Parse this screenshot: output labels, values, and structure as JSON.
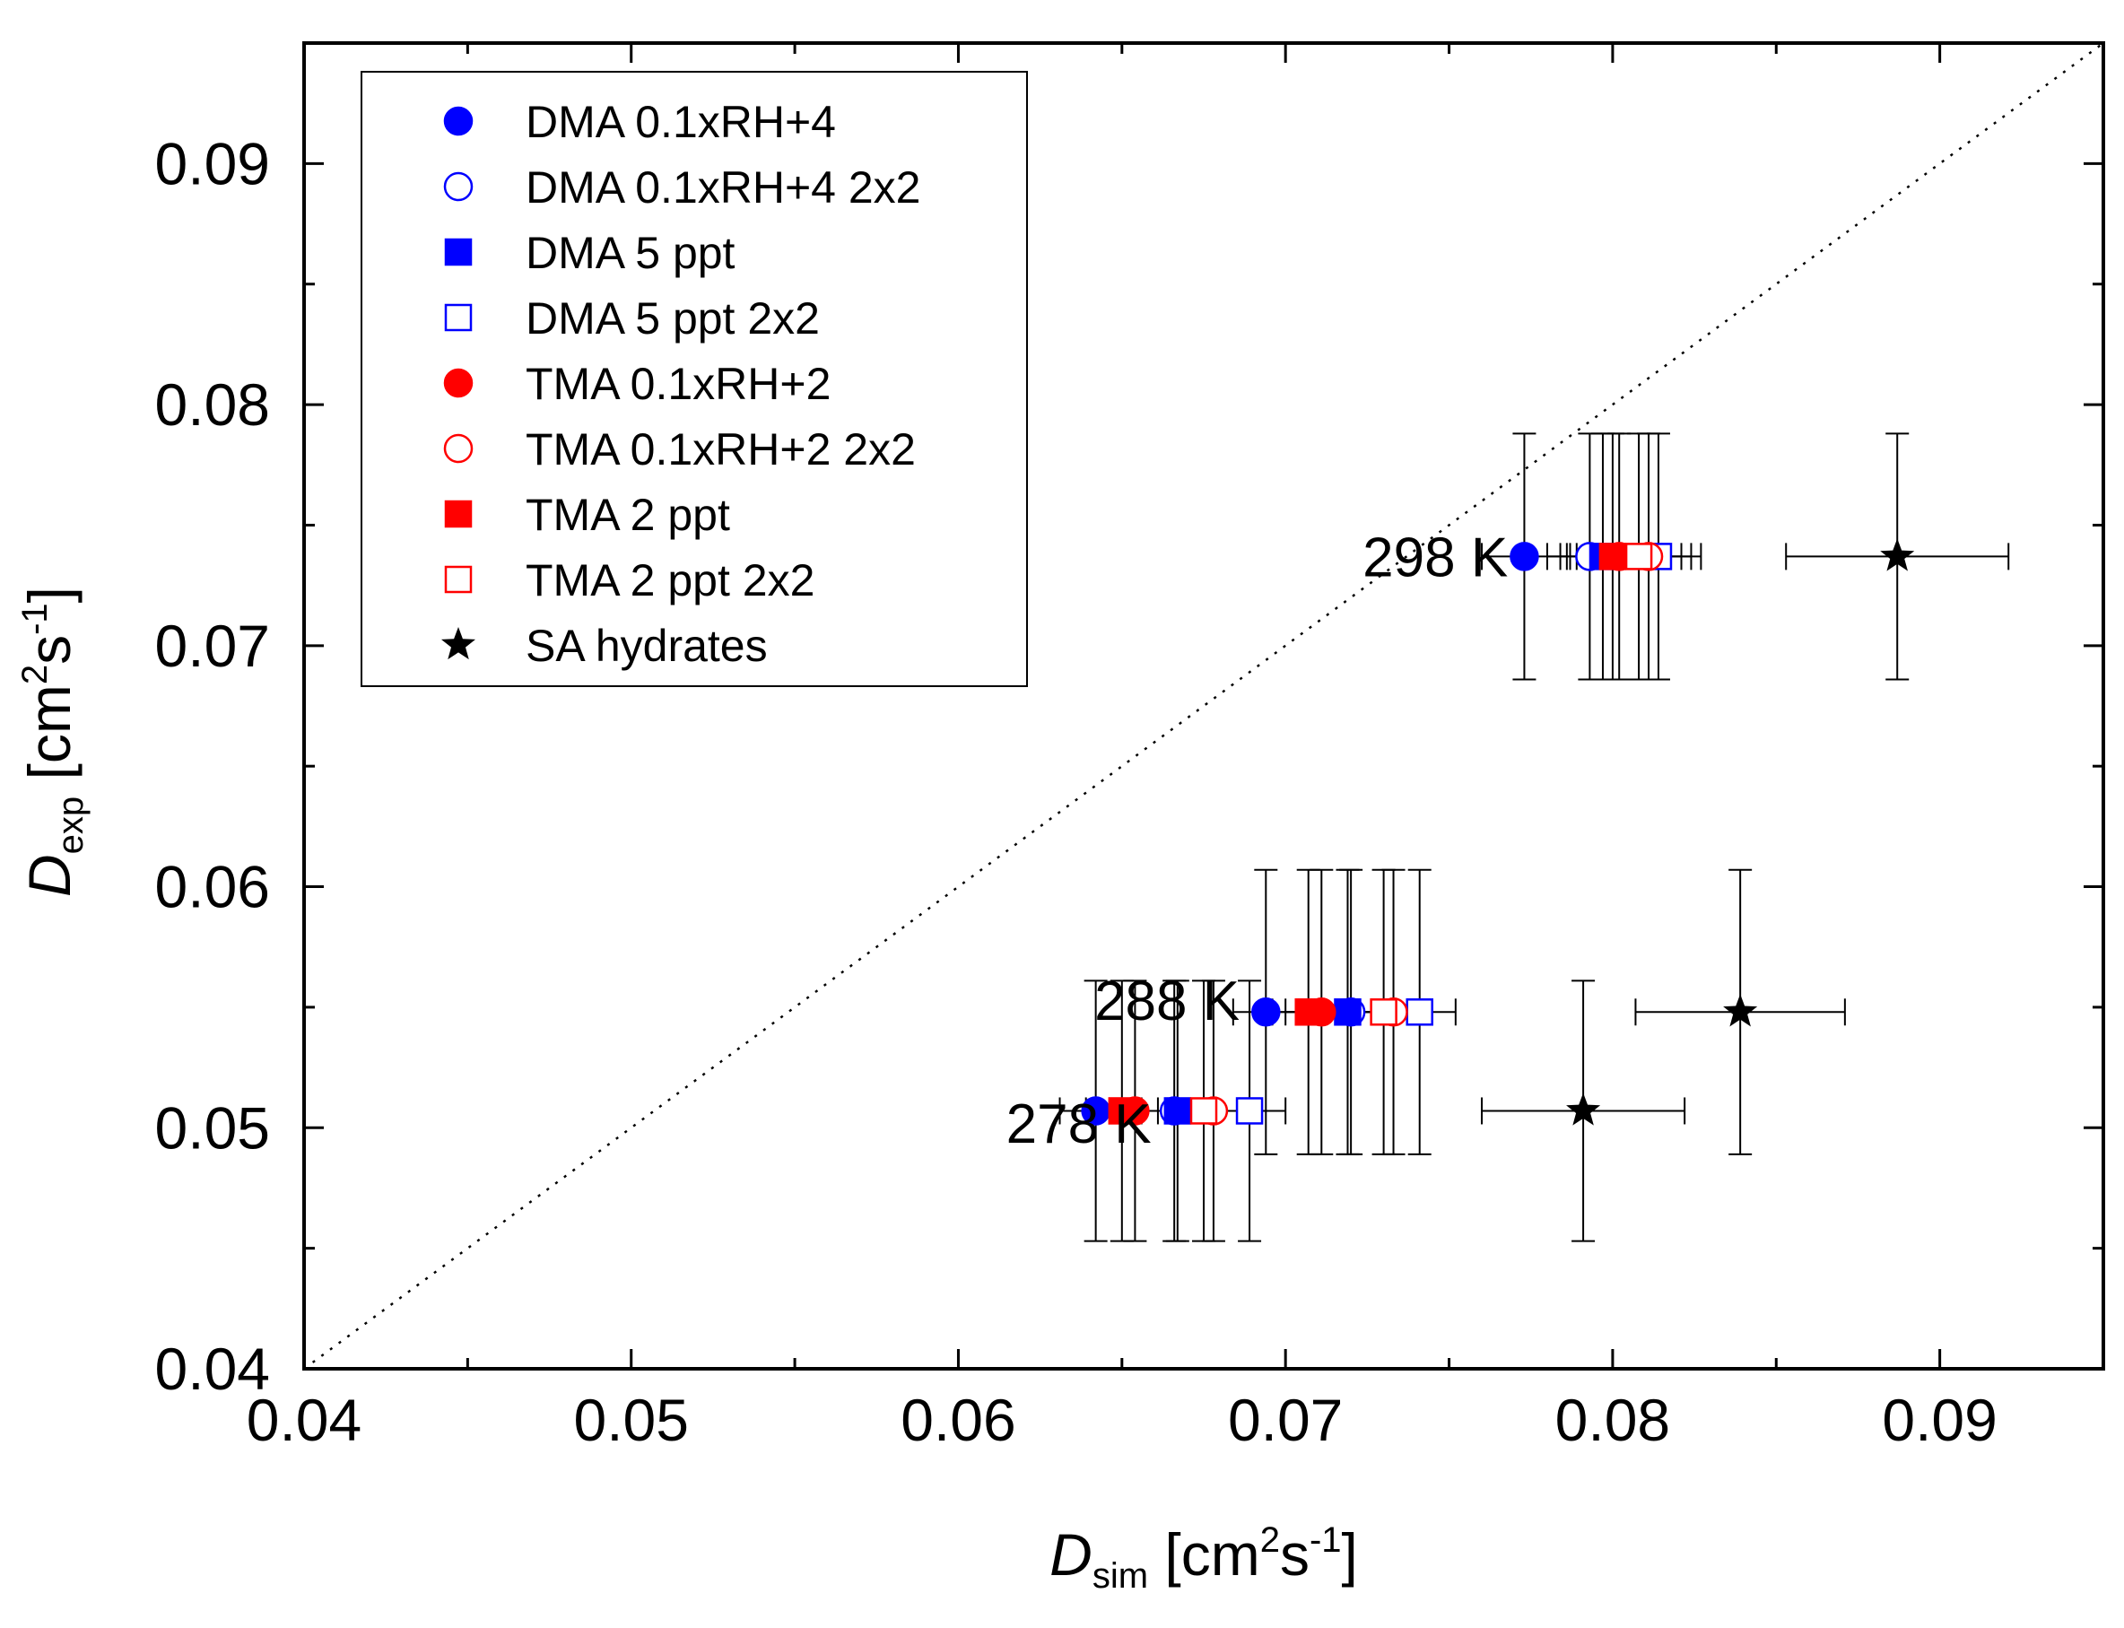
{
  "chart_data": {
    "type": "scatter",
    "title": "",
    "xlabel": {
      "symbol": "D",
      "sub": "sim",
      "unit_open": " [cm",
      "sup1": "2",
      "unit_mid": "s",
      "sup2": "-1",
      "unit_close": "]"
    },
    "ylabel": {
      "symbol": "D",
      "sub": "exp",
      "unit_open": " [cm",
      "sup1": "2",
      "unit_mid": "s",
      "sup2": "-1",
      "unit_close": "]"
    },
    "xlim": [
      0.04,
      0.095
    ],
    "ylim": [
      0.04,
      0.095
    ],
    "x_ticks": [
      "0.04",
      "0.05",
      "0.06",
      "0.07",
      "0.08",
      "0.09"
    ],
    "y_ticks": [
      "0.04",
      "0.05",
      "0.06",
      "0.07",
      "0.08",
      "0.09"
    ],
    "grid": false,
    "diagonal": "y = x (dotted)",
    "legend_position": "top-left",
    "annotations": [
      {
        "text": "298 K",
        "x": 0.0768,
        "y": 0.0737
      },
      {
        "text": "288 K",
        "x": 0.0686,
        "y": 0.0553
      },
      {
        "text": "278 K",
        "x": 0.0659,
        "y": 0.0502
      }
    ],
    "series": [
      {
        "name": "DMA 0.1xRH+4",
        "marker": "circle",
        "fill": true,
        "color": "#0000ff",
        "points": [
          {
            "x": 0.0773,
            "y": 0.0737,
            "xerr": 0.0013,
            "yerr": 0.0051
          },
          {
            "x": 0.0694,
            "y": 0.0548,
            "xerr": 0.001,
            "yerr": 0.0059
          },
          {
            "x": 0.0642,
            "y": 0.0507,
            "xerr": 0.0011,
            "yerr": 0.0054
          }
        ]
      },
      {
        "name": "DMA 0.1xRH+4 2x2",
        "marker": "circle",
        "fill": false,
        "color": "#0000ff",
        "points": [
          {
            "x": 0.0793,
            "y": 0.0737,
            "xerr": 0.0013,
            "yerr": 0.0051
          },
          {
            "x": 0.072,
            "y": 0.0548,
            "xerr": 0.0011,
            "yerr": 0.0059
          },
          {
            "x": 0.0666,
            "y": 0.0507,
            "xerr": 0.0011,
            "yerr": 0.0054
          }
        ]
      },
      {
        "name": "DMA 5 ppt",
        "marker": "square",
        "fill": true,
        "color": "#0000ff",
        "points": [
          {
            "x": 0.0797,
            "y": 0.0737,
            "xerr": 0.0013,
            "yerr": 0.0051
          },
          {
            "x": 0.0719,
            "y": 0.0548,
            "xerr": 0.0011,
            "yerr": 0.0059
          },
          {
            "x": 0.0667,
            "y": 0.0507,
            "xerr": 0.0011,
            "yerr": 0.0054
          }
        ]
      },
      {
        "name": "DMA 5 ppt 2x2",
        "marker": "square",
        "fill": false,
        "color": "#0000ff",
        "points": [
          {
            "x": 0.0814,
            "y": 0.0737,
            "xerr": 0.0013,
            "yerr": 0.0051
          },
          {
            "x": 0.0741,
            "y": 0.0548,
            "xerr": 0.0011,
            "yerr": 0.0059
          },
          {
            "x": 0.0689,
            "y": 0.0507,
            "xerr": 0.0011,
            "yerr": 0.0054
          }
        ]
      },
      {
        "name": "TMA 0.1xRH+2",
        "marker": "circle",
        "fill": true,
        "color": "#ff0000",
        "points": [
          {
            "x": 0.0802,
            "y": 0.0737,
            "xerr": 0.0013,
            "yerr": 0.0051
          },
          {
            "x": 0.0711,
            "y": 0.0548,
            "xerr": 0.0011,
            "yerr": 0.0059
          },
          {
            "x": 0.0654,
            "y": 0.0507,
            "xerr": 0.0011,
            "yerr": 0.0054
          }
        ]
      },
      {
        "name": "TMA 0.1xRH+2 2x2",
        "marker": "circle",
        "fill": false,
        "color": "#ff0000",
        "points": [
          {
            "x": 0.0811,
            "y": 0.0737,
            "xerr": 0.0013,
            "yerr": 0.0051
          },
          {
            "x": 0.0733,
            "y": 0.0548,
            "xerr": 0.0011,
            "yerr": 0.0059
          },
          {
            "x": 0.0678,
            "y": 0.0507,
            "xerr": 0.0011,
            "yerr": 0.0054
          }
        ]
      },
      {
        "name": "TMA 2 ppt",
        "marker": "square",
        "fill": true,
        "color": "#ff0000",
        "points": [
          {
            "x": 0.08,
            "y": 0.0737,
            "xerr": 0.0013,
            "yerr": 0.0051
          },
          {
            "x": 0.0707,
            "y": 0.0548,
            "xerr": 0.0011,
            "yerr": 0.0059
          },
          {
            "x": 0.065,
            "y": 0.0507,
            "xerr": 0.0011,
            "yerr": 0.0054
          }
        ]
      },
      {
        "name": "TMA 2 ppt 2x2",
        "marker": "square",
        "fill": false,
        "color": "#ff0000",
        "points": [
          {
            "x": 0.0808,
            "y": 0.0737,
            "xerr": 0.0013,
            "yerr": 0.0051
          },
          {
            "x": 0.073,
            "y": 0.0548,
            "xerr": 0.0011,
            "yerr": 0.0059
          },
          {
            "x": 0.0675,
            "y": 0.0507,
            "xerr": 0.0011,
            "yerr": 0.0054
          }
        ]
      },
      {
        "name": "SA hydrates",
        "marker": "star",
        "fill": true,
        "color": "#000000",
        "points": [
          {
            "x": 0.0887,
            "y": 0.0737,
            "xerr": 0.0034,
            "yerr": 0.0051
          },
          {
            "x": 0.0839,
            "y": 0.0548,
            "xerr": 0.0032,
            "yerr": 0.0059
          },
          {
            "x": 0.0791,
            "y": 0.0507,
            "xerr": 0.0031,
            "yerr": 0.0054
          }
        ]
      }
    ]
  }
}
